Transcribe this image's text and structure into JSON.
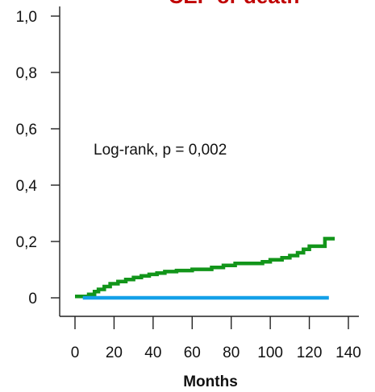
{
  "chart_data": {
    "type": "line",
    "title": "CEP or death",
    "xlabel": "Months",
    "ylabel": "",
    "xlim": [
      -5,
      140
    ],
    "ylim": [
      0,
      1.0
    ],
    "xticks": [
      0,
      20,
      40,
      60,
      80,
      100,
      120,
      140
    ],
    "xtick_labels": [
      "0",
      "20",
      "40",
      "60",
      "80",
      "100",
      "120",
      "140"
    ],
    "yticks": [
      0,
      0.2,
      0.4,
      0.6,
      0.8,
      1.0
    ],
    "ytick_labels": [
      "0",
      "0,2",
      "0,4",
      "0,6",
      "0,8",
      "1,0"
    ],
    "annotation": "Log-rank, p = 0,002",
    "grid": false,
    "colors": {
      "title": "#c00000",
      "axis": "#222222"
    },
    "series": [
      {
        "color": "#12951a",
        "step": true,
        "points": [
          [
            0,
            0.005
          ],
          [
            6,
            0.005
          ],
          [
            7,
            0.012
          ],
          [
            10,
            0.022
          ],
          [
            12,
            0.03
          ],
          [
            15,
            0.04
          ],
          [
            18,
            0.05
          ],
          [
            22,
            0.058
          ],
          [
            26,
            0.065
          ],
          [
            30,
            0.072
          ],
          [
            34,
            0.078
          ],
          [
            38,
            0.083
          ],
          [
            42,
            0.088
          ],
          [
            46,
            0.093
          ],
          [
            52,
            0.097
          ],
          [
            60,
            0.101
          ],
          [
            70,
            0.108
          ],
          [
            76,
            0.115
          ],
          [
            82,
            0.122
          ],
          [
            96,
            0.128
          ],
          [
            100,
            0.135
          ],
          [
            106,
            0.142
          ],
          [
            110,
            0.15
          ],
          [
            114,
            0.16
          ],
          [
            117,
            0.172
          ],
          [
            120,
            0.183
          ],
          [
            128,
            0.21
          ],
          [
            133,
            0.21
          ]
        ]
      },
      {
        "color": "#14a0e8",
        "step": true,
        "points": [
          [
            4,
            0.0
          ],
          [
            130,
            0.0
          ]
        ]
      }
    ]
  }
}
